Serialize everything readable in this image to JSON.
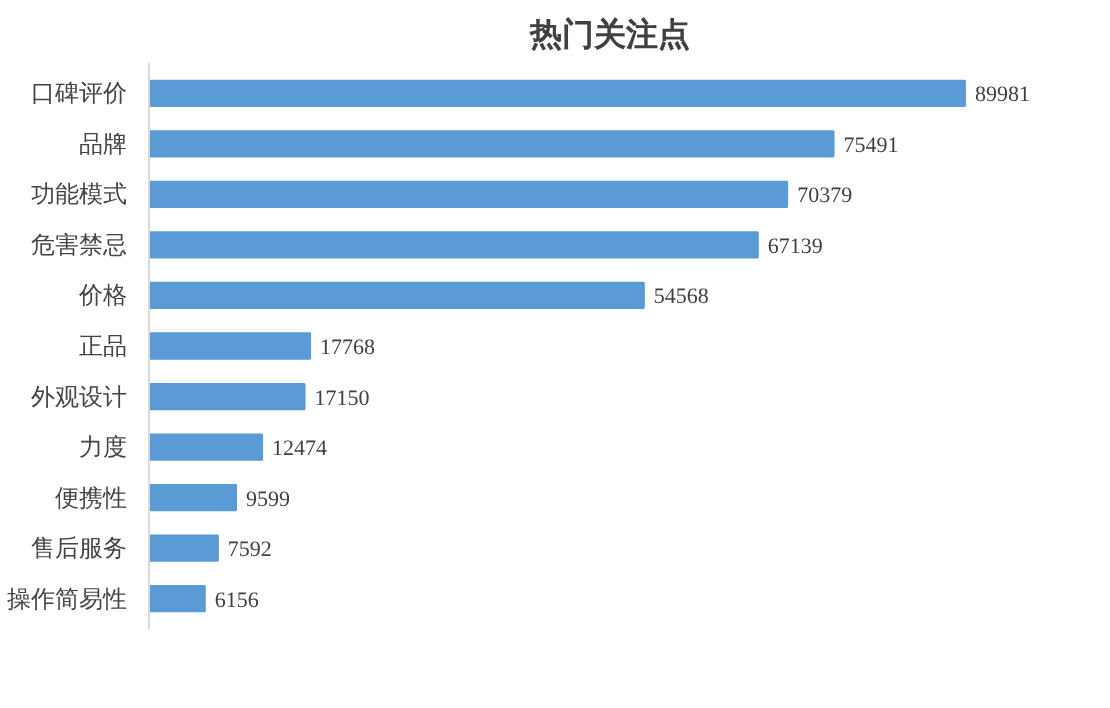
{
  "chart_data": {
    "type": "bar",
    "orientation": "horizontal",
    "title": "热门关注点",
    "categories": [
      "口碑评价",
      "品牌",
      "功能模式",
      "危害禁忌",
      "价格",
      "正品",
      "外观设计",
      "力度",
      "便携性",
      "售后服务",
      "操作简易性"
    ],
    "values": [
      89981,
      75491,
      70379,
      67139,
      54568,
      17768,
      17150,
      12474,
      9599,
      7592,
      6156
    ],
    "color": "#5b9bd5",
    "data_labels": true,
    "grid": false
  }
}
